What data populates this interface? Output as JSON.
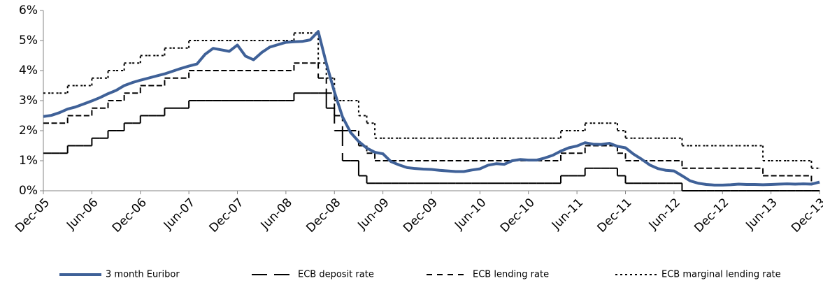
{
  "chart_data": {
    "type": "line",
    "categories": [
      "Dec-05",
      null,
      null,
      null,
      null,
      null,
      "Jun-06",
      null,
      null,
      null,
      null,
      null,
      "Dec-06",
      null,
      null,
      null,
      null,
      null,
      "Jun-07",
      null,
      null,
      null,
      null,
      null,
      "Dec-07",
      null,
      null,
      null,
      null,
      null,
      "Jun-08",
      null,
      null,
      null,
      null,
      null,
      "Dec-08",
      null,
      null,
      null,
      null,
      null,
      "Jun-09",
      null,
      null,
      null,
      null,
      null,
      "Dec-09",
      null,
      null,
      null,
      null,
      null,
      "Jun-10",
      null,
      null,
      null,
      null,
      null,
      "Dec-10",
      null,
      null,
      null,
      null,
      null,
      "Jun-11",
      null,
      null,
      null,
      null,
      null,
      "Dec-11",
      null,
      null,
      null,
      null,
      null,
      "Jun-12",
      null,
      null,
      null,
      null,
      null,
      "Dec-12",
      null,
      null,
      null,
      null,
      null,
      "Jun-13",
      null,
      null,
      null,
      null,
      null,
      "Dec-13"
    ],
    "ylim": [
      0,
      6
    ],
    "yticks": [
      {
        "value": 0,
        "label": "0%"
      },
      {
        "value": 1,
        "label": "1%"
      },
      {
        "value": 2,
        "label": "2%"
      },
      {
        "value": 3,
        "label": "3%"
      },
      {
        "value": 4,
        "label": "4%"
      },
      {
        "value": 5,
        "label": "5%"
      },
      {
        "value": 6,
        "label": "6%"
      }
    ],
    "series": [
      {
        "name": "3 month Euribor",
        "color": "#3f6198",
        "style": "solid",
        "values": [
          2.47,
          2.51,
          2.6,
          2.72,
          2.79,
          2.89,
          2.99,
          3.1,
          3.23,
          3.34,
          3.5,
          3.6,
          3.68,
          3.75,
          3.82,
          3.89,
          3.98,
          4.07,
          4.15,
          4.22,
          4.54,
          4.74,
          4.69,
          4.64,
          4.85,
          4.48,
          4.36,
          4.6,
          4.78,
          4.86,
          4.94,
          4.96,
          4.97,
          5.02,
          5.3,
          4.24,
          3.29,
          2.46,
          1.94,
          1.64,
          1.42,
          1.28,
          1.23,
          0.97,
          0.86,
          0.77,
          0.74,
          0.72,
          0.71,
          0.68,
          0.66,
          0.64,
          0.64,
          0.69,
          0.73,
          0.85,
          0.9,
          0.88,
          1.0,
          1.04,
          1.02,
          1.02,
          1.09,
          1.18,
          1.32,
          1.43,
          1.49,
          1.6,
          1.55,
          1.54,
          1.58,
          1.48,
          1.43,
          1.22,
          1.05,
          0.86,
          0.74,
          0.68,
          0.66,
          0.5,
          0.33,
          0.25,
          0.21,
          0.19,
          0.19,
          0.2,
          0.22,
          0.21,
          0.21,
          0.2,
          0.21,
          0.22,
          0.23,
          0.22,
          0.23,
          0.22,
          0.29
        ]
      },
      {
        "name": "ECB deposit rate",
        "color": "#000000",
        "style": "long-dash",
        "values": [
          1.25,
          1.25,
          1.25,
          1.5,
          1.5,
          1.5,
          1.75,
          1.75,
          2,
          2,
          2.25,
          2.25,
          2.5,
          2.5,
          2.5,
          2.75,
          2.75,
          2.75,
          3,
          3,
          3,
          3,
          3,
          3,
          3,
          3,
          3,
          3,
          3,
          3,
          3,
          3.25,
          3.25,
          3.25,
          3.25,
          2.75,
          2,
          1,
          1,
          0.5,
          0.25,
          0.25,
          0.25,
          0.25,
          0.25,
          0.25,
          0.25,
          0.25,
          0.25,
          0.25,
          0.25,
          0.25,
          0.25,
          0.25,
          0.25,
          0.25,
          0.25,
          0.25,
          0.25,
          0.25,
          0.25,
          0.25,
          0.25,
          0.25,
          0.5,
          0.5,
          0.5,
          0.75,
          0.75,
          0.75,
          0.75,
          0.5,
          0.25,
          0.25,
          0.25,
          0.25,
          0.25,
          0.25,
          0.25,
          0,
          0,
          0,
          0,
          0,
          0,
          0,
          0,
          0,
          0,
          0,
          0,
          0,
          0,
          0,
          0,
          0,
          0
        ]
      },
      {
        "name": "ECB lending rate",
        "color": "#000000",
        "style": "short-dash",
        "values": [
          2.25,
          2.25,
          2.25,
          2.5,
          2.5,
          2.5,
          2.75,
          2.75,
          3,
          3,
          3.25,
          3.25,
          3.5,
          3.5,
          3.5,
          3.75,
          3.75,
          3.75,
          4,
          4,
          4,
          4,
          4,
          4,
          4,
          4,
          4,
          4,
          4,
          4,
          4,
          4.25,
          4.25,
          4.25,
          3.75,
          3.25,
          2.5,
          2,
          2,
          1.5,
          1.25,
          1,
          1,
          1,
          1,
          1,
          1,
          1,
          1,
          1,
          1,
          1,
          1,
          1,
          1,
          1,
          1,
          1,
          1,
          1,
          1,
          1,
          1,
          1,
          1.25,
          1.25,
          1.25,
          1.5,
          1.5,
          1.5,
          1.5,
          1.25,
          1,
          1,
          1,
          1,
          1,
          1,
          1,
          0.75,
          0.75,
          0.75,
          0.75,
          0.75,
          0.75,
          0.75,
          0.75,
          0.75,
          0.75,
          0.5,
          0.5,
          0.5,
          0.5,
          0.5,
          0.5,
          0.25,
          0.25
        ]
      },
      {
        "name": "ECB marginal lending rate",
        "color": "#000000",
        "style": "dotted",
        "values": [
          3.25,
          3.25,
          3.25,
          3.5,
          3.5,
          3.5,
          3.75,
          3.75,
          4,
          4,
          4.25,
          4.25,
          4.5,
          4.5,
          4.5,
          4.75,
          4.75,
          4.75,
          5,
          5,
          5,
          5,
          5,
          5,
          5,
          5,
          5,
          5,
          5,
          5,
          5,
          5.25,
          5.25,
          5.25,
          4.25,
          3.75,
          3,
          3,
          3,
          2.5,
          2.25,
          1.75,
          1.75,
          1.75,
          1.75,
          1.75,
          1.75,
          1.75,
          1.75,
          1.75,
          1.75,
          1.75,
          1.75,
          1.75,
          1.75,
          1.75,
          1.75,
          1.75,
          1.75,
          1.75,
          1.75,
          1.75,
          1.75,
          1.75,
          2,
          2,
          2,
          2.25,
          2.25,
          2.25,
          2.25,
          2,
          1.75,
          1.75,
          1.75,
          1.75,
          1.75,
          1.75,
          1.75,
          1.5,
          1.5,
          1.5,
          1.5,
          1.5,
          1.5,
          1.5,
          1.5,
          1.5,
          1.5,
          1,
          1,
          1,
          1,
          1,
          1,
          0.75,
          0.75
        ]
      }
    ]
  }
}
